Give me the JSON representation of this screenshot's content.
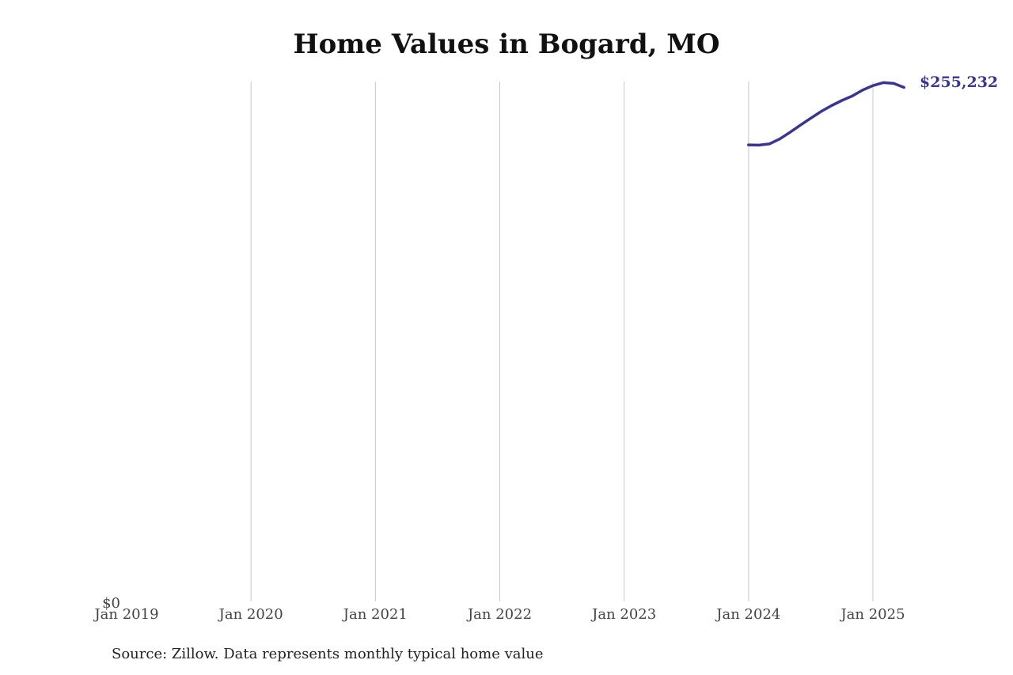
{
  "chart_data": {
    "type": "line",
    "title": "Home Values in Bogard, MO",
    "xlabel": "",
    "ylabel": "",
    "x_tick_labels": [
      "Jan 2019",
      "Jan 2020",
      "Jan 2021",
      "Jan 2022",
      "Jan 2023",
      "Jan 2024",
      "Jan 2025"
    ],
    "y_tick_labels": [
      "$0"
    ],
    "xlim": [
      "2019-01",
      "2025-05"
    ],
    "ylim": [
      0,
      255232
    ],
    "grid": {
      "x": true,
      "y": false
    },
    "series": [
      {
        "color": "#3a3595",
        "x": [
          "2024-01",
          "2024-02",
          "2024-03",
          "2024-04",
          "2024-05",
          "2024-06",
          "2024-07",
          "2024-08",
          "2024-09",
          "2024-10",
          "2024-11",
          "2024-12",
          "2025-01",
          "2025-02",
          "2025-03",
          "2025-04"
        ],
        "values": [
          224100,
          224000,
          224600,
          227000,
          230300,
          233800,
          237200,
          240500,
          243400,
          245900,
          248100,
          251000,
          253200,
          254700,
          254300,
          252300
        ]
      }
    ],
    "end_label": "$255,232"
  },
  "footer": {
    "source": "Source: Zillow. Data represents monthly typical home value"
  }
}
